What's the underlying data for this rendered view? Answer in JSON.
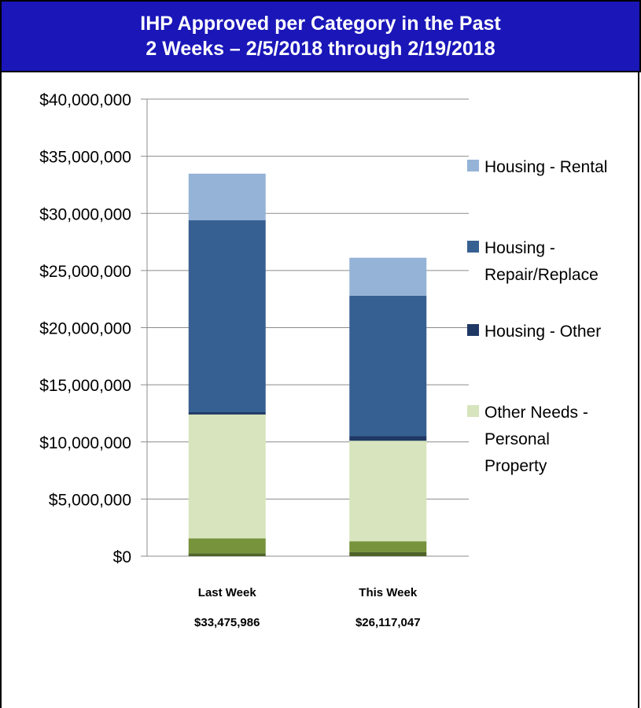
{
  "chart_data": {
    "type": "bar",
    "stacked": true,
    "title_line1": "IHP Approved per Category in the Past",
    "title_line2": "2 Weeks – 2/5/2018 through 2/19/2018",
    "categories": [
      "Last Week",
      "This Week"
    ],
    "category_totals": [
      "$33,475,986",
      "$26,117,047"
    ],
    "ylim": [
      0,
      40000000
    ],
    "yticks": [
      0,
      5000000,
      10000000,
      15000000,
      20000000,
      25000000,
      30000000,
      35000000,
      40000000
    ],
    "ytick_labels": [
      "$0",
      "$5,000,000",
      "$10,000,000",
      "$15,000,000",
      "$20,000,000",
      "$25,000,000",
      "$30,000,000",
      "$35,000,000",
      "$40,000,000"
    ],
    "grid": true,
    "legend_position": "right",
    "series": [
      {
        "name": "",
        "color": "#4f6228",
        "values": [
          250000,
          350000
        ],
        "legend": false
      },
      {
        "name": "",
        "color": "#77933c",
        "values": [
          1300000,
          950000
        ],
        "legend": false
      },
      {
        "name_lines": [
          "Other Needs -",
          "Personal",
          "Property"
        ],
        "color": "#d7e4bd",
        "values": [
          10850000,
          8800000
        ],
        "legend": true
      },
      {
        "name_lines": [
          "Housing - Other"
        ],
        "color": "#1f3864",
        "values": [
          200000,
          400000
        ],
        "legend": true
      },
      {
        "name_lines": [
          "Housing -",
          "Repair/Replace"
        ],
        "color": "#376092",
        "values": [
          16800000,
          12300000
        ],
        "legend": true
      },
      {
        "name_lines": [
          "Housing - Rental"
        ],
        "color": "#95b3d7",
        "values": [
          4075986,
          3317047
        ],
        "legend": true
      }
    ]
  }
}
